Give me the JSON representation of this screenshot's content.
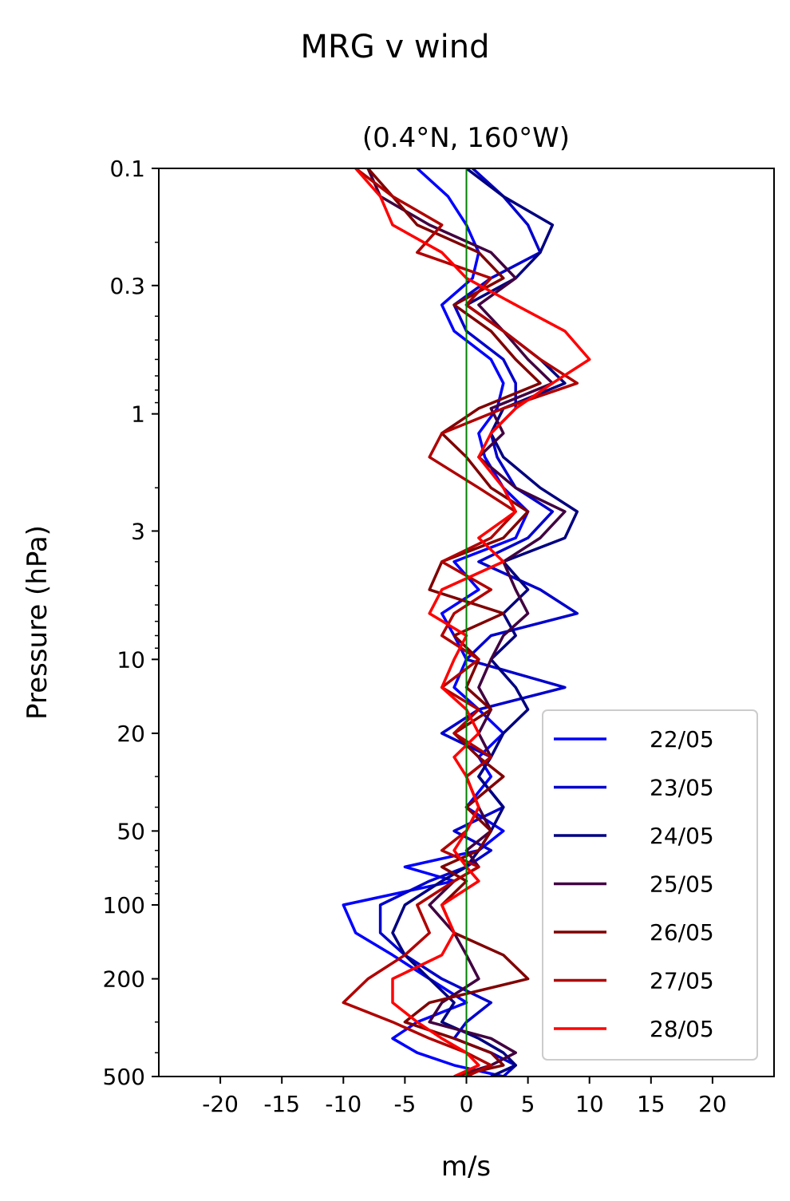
{
  "chart_data": {
    "type": "line",
    "title": "MRG v wind",
    "subtitle": "(0.4°N, 160°W)",
    "xlabel": "m/s",
    "ylabel": "Pressure (hPa)",
    "xlim": [
      -25,
      25
    ],
    "ylim": [
      500,
      0.1
    ],
    "y_scale": "log",
    "x_ticks": [
      -20,
      -15,
      -10,
      -5,
      0,
      5,
      10,
      15,
      20
    ],
    "x_tick_labels": [
      "-20",
      "-15",
      "-10",
      "-5",
      "0",
      "5",
      "10",
      "15",
      "20"
    ],
    "y_ticks": [
      0.1,
      0.3,
      1,
      3,
      10,
      20,
      50,
      100,
      200,
      500
    ],
    "y_tick_labels": [
      "0.1",
      "0.3",
      "1",
      "3",
      "10",
      "20",
      "50",
      "100",
      "200",
      "500"
    ],
    "reference_line": {
      "x": 0,
      "color": "#008000"
    },
    "legend_position": "lower right",
    "pressure_levels": [
      0.1,
      0.13,
      0.17,
      0.22,
      0.28,
      0.36,
      0.46,
      0.6,
      0.75,
      0.95,
      1.2,
      1.5,
      2.0,
      2.5,
      3.2,
      4.0,
      5.2,
      6.5,
      8.0,
      10,
      13,
      16,
      20,
      25,
      30,
      40,
      50,
      60,
      70,
      80,
      100,
      130,
      160,
      200,
      250,
      300,
      350,
      400,
      450,
      500
    ],
    "series": [
      {
        "name": "22/05",
        "color": "#0000ff",
        "values": [
          -4,
          -1.5,
          0,
          1,
          0.5,
          -2,
          -1,
          2,
          3,
          2.5,
          1,
          1.5,
          3,
          5,
          4,
          -1,
          1,
          -2,
          -1,
          0,
          -1,
          1,
          3,
          1,
          2,
          0,
          3,
          1,
          -5,
          -1,
          -10,
          -9,
          -6,
          -3,
          0,
          -4,
          -6,
          -4,
          -1,
          3
        ]
      },
      {
        "name": "23/05",
        "color": "#0000cc",
        "values": [
          0.5,
          3,
          5,
          6,
          2,
          -1,
          0,
          3,
          4,
          4,
          2,
          2.5,
          4,
          7,
          5,
          1,
          6,
          9,
          2,
          0,
          8,
          1,
          -2,
          2,
          1,
          3,
          -1,
          2,
          0,
          -3,
          -7,
          -7,
          -5,
          -2,
          2,
          0,
          -1,
          2,
          4,
          3
        ]
      },
      {
        "name": "24/05",
        "color": "#000080",
        "values": [
          0,
          3,
          7,
          6,
          4,
          0,
          3,
          6,
          8,
          3,
          2,
          3,
          6,
          9,
          8,
          3,
          5,
          3,
          4,
          2,
          4,
          5,
          3,
          2,
          1,
          3,
          2,
          1,
          0,
          -2,
          -5,
          -6,
          -5,
          -3,
          -1,
          -2,
          1,
          3,
          4,
          2
        ]
      },
      {
        "name": "25/05",
        "color": "#400040",
        "values": [
          -8,
          -7,
          -3,
          2,
          4,
          1,
          3,
          5,
          7,
          2,
          3,
          1,
          4,
          8,
          6,
          3,
          4,
          5,
          3,
          2,
          1,
          2,
          1,
          2,
          0,
          1,
          2,
          0,
          1,
          -1,
          -3,
          -1,
          0,
          1,
          -2,
          -3,
          2,
          4,
          2,
          -1
        ]
      },
      {
        "name": "26/05",
        "color": "#800000",
        "values": [
          -8,
          -6,
          -4,
          1,
          3,
          -1,
          2,
          4,
          6,
          1,
          -2,
          0,
          2,
          5,
          3,
          -2,
          -3,
          3,
          -1,
          1,
          0,
          2,
          -1,
          1,
          3,
          0,
          2,
          1,
          -2,
          0,
          -2,
          -1,
          3,
          5,
          -3,
          -5,
          -1,
          2,
          3,
          -1
        ]
      },
      {
        "name": "27/05",
        "color": "#b00000",
        "values": [
          -9,
          -6,
          -2,
          -4,
          2,
          0,
          3,
          6,
          9,
          3,
          -2,
          -3,
          1,
          4,
          2,
          -2,
          2,
          -1,
          -2,
          1,
          -2,
          1,
          -1,
          2,
          0,
          1,
          0,
          -2,
          1,
          -1,
          -4,
          -3,
          -5,
          -8,
          -10,
          -6,
          -3,
          0,
          2,
          0
        ]
      },
      {
        "name": "28/05",
        "color": "#ff0000",
        "values": [
          -9,
          -7,
          -6,
          -2,
          0,
          4,
          8,
          10,
          7,
          4,
          2,
          1,
          3,
          4,
          1,
          3,
          -2,
          -3,
          0,
          -1,
          -2,
          0,
          1,
          -1,
          0,
          1,
          0,
          -1,
          0,
          1,
          -2,
          -1,
          -2,
          -6,
          -6,
          -4,
          -2,
          0,
          1,
          -1
        ]
      }
    ]
  }
}
